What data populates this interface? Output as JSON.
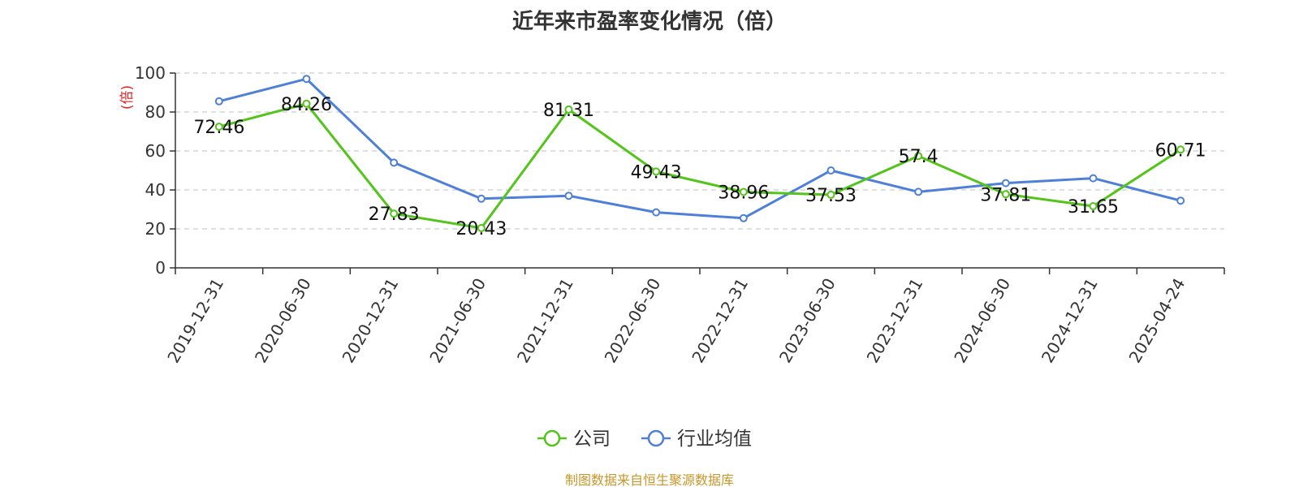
{
  "chart_data": {
    "type": "line",
    "title": "近年来市盈率变化情况（倍）",
    "ylabel": "(倍)",
    "xlabel": "",
    "ylim": [
      0,
      100
    ],
    "yticks": [
      0,
      20,
      40,
      60,
      80,
      100
    ],
    "grid": true,
    "legend_position": "bottom",
    "categories": [
      "2019-12-31",
      "2020-06-30",
      "2020-12-31",
      "2021-06-30",
      "2021-12-31",
      "2022-06-30",
      "2022-12-31",
      "2023-06-30",
      "2023-12-31",
      "2024-06-30",
      "2024-12-31",
      "2025-04-24"
    ],
    "series": [
      {
        "name": "公司",
        "color": "#52c41a",
        "values": [
          72.46,
          84.26,
          27.83,
          20.43,
          81.31,
          49.43,
          38.96,
          37.53,
          57.4,
          37.81,
          31.65,
          60.71
        ],
        "labels": [
          "72.46",
          "84.26",
          "27.83",
          "20.43",
          "81.31",
          "49.43",
          "38.96",
          "37.53",
          "57.4",
          "37.81",
          "31.65",
          "60.71"
        ]
      },
      {
        "name": "行业均值",
        "color": "#4e7fd9",
        "values": [
          85.5,
          97,
          54,
          35.5,
          37,
          28.5,
          25.5,
          50,
          39,
          43.5,
          46,
          34.5
        ]
      }
    ]
  },
  "source_note": "制图数据来自恒生聚源数据库"
}
